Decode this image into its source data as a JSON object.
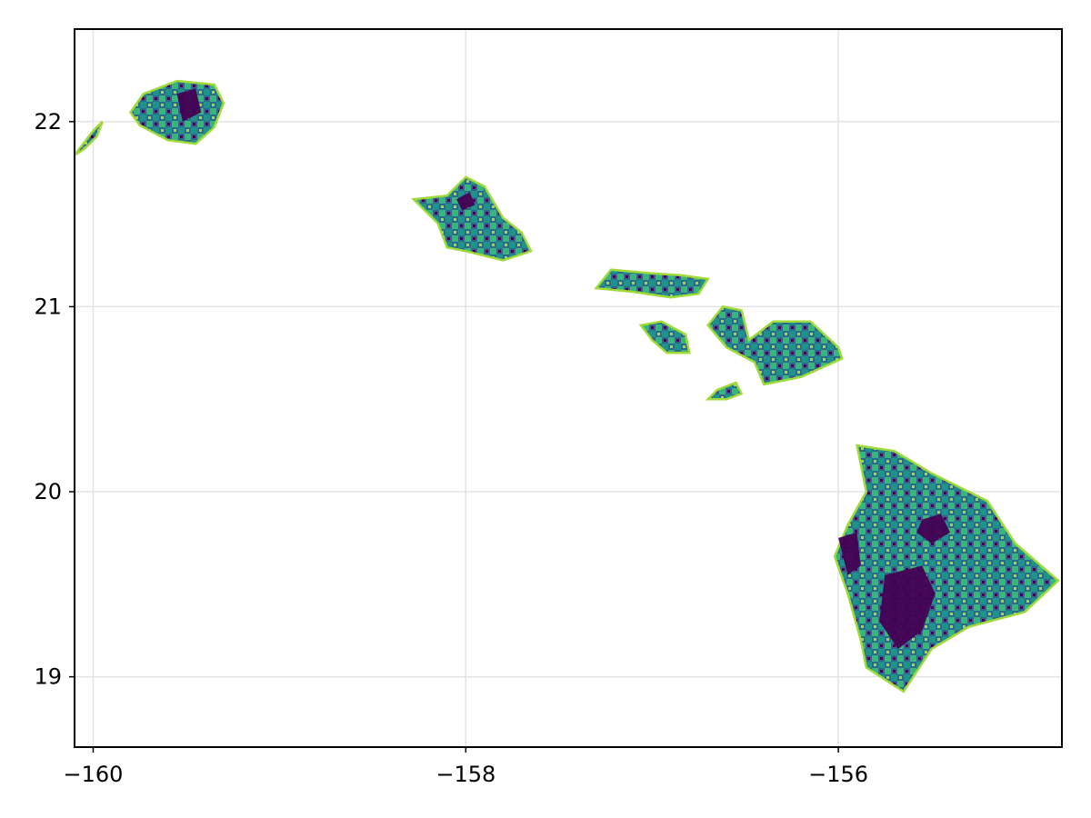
{
  "chart_data": {
    "type": "heatmap",
    "title": "",
    "xlabel": "",
    "ylabel": "",
    "xlim": [
      -160.1,
      -154.8
    ],
    "ylim": [
      18.62,
      22.5
    ],
    "grid": true,
    "colormap": "viridis",
    "x_ticks": [
      {
        "value": -160,
        "label": "−160"
      },
      {
        "value": -158,
        "label": "−158"
      },
      {
        "value": -156,
        "label": "−156"
      }
    ],
    "y_ticks": [
      {
        "value": 19,
        "label": "19"
      },
      {
        "value": 20,
        "label": "20"
      },
      {
        "value": 21,
        "label": "21"
      },
      {
        "value": 22,
        "label": "22"
      }
    ],
    "colors": {
      "dark": "#440154",
      "mid_dark": "#30678d",
      "teal": "#21918c",
      "green": "#35b779",
      "yellow_green": "#a0da39",
      "frame": "#000000",
      "grid": "#e3e3e3"
    },
    "regions": [
      {
        "name": "niihau-fragment",
        "outline": [
          [
            -160.1,
            21.82
          ],
          [
            -160.0,
            21.95
          ],
          [
            -159.95,
            22.0
          ],
          [
            -159.98,
            21.92
          ],
          [
            -160.05,
            21.85
          ]
        ]
      },
      {
        "name": "kauai",
        "outline": [
          [
            -159.8,
            22.05
          ],
          [
            -159.73,
            22.15
          ],
          [
            -159.55,
            22.22
          ],
          [
            -159.35,
            22.2
          ],
          [
            -159.3,
            22.1
          ],
          [
            -159.35,
            21.97
          ],
          [
            -159.45,
            21.88
          ],
          [
            -159.6,
            21.9
          ],
          [
            -159.75,
            21.98
          ]
        ]
      },
      {
        "name": "oahu",
        "outline": [
          [
            -158.28,
            21.58
          ],
          [
            -158.1,
            21.6
          ],
          [
            -158.0,
            21.7
          ],
          [
            -157.9,
            21.65
          ],
          [
            -157.8,
            21.48
          ],
          [
            -157.7,
            21.4
          ],
          [
            -157.65,
            21.3
          ],
          [
            -157.8,
            21.25
          ],
          [
            -158.0,
            21.3
          ],
          [
            -158.1,
            21.32
          ],
          [
            -158.15,
            21.45
          ]
        ]
      },
      {
        "name": "molokai",
        "outline": [
          [
            -157.3,
            21.1
          ],
          [
            -157.22,
            21.2
          ],
          [
            -157.0,
            21.18
          ],
          [
            -156.85,
            21.17
          ],
          [
            -156.7,
            21.15
          ],
          [
            -156.75,
            21.07
          ],
          [
            -156.9,
            21.05
          ],
          [
            -157.1,
            21.08
          ]
        ]
      },
      {
        "name": "lanai",
        "outline": [
          [
            -157.06,
            20.9
          ],
          [
            -156.95,
            20.92
          ],
          [
            -156.82,
            20.85
          ],
          [
            -156.8,
            20.75
          ],
          [
            -156.92,
            20.75
          ],
          [
            -157.0,
            20.82
          ]
        ]
      },
      {
        "name": "maui",
        "outline": [
          [
            -156.7,
            20.9
          ],
          [
            -156.62,
            21.0
          ],
          [
            -156.52,
            20.98
          ],
          [
            -156.48,
            20.82
          ],
          [
            -156.35,
            20.92
          ],
          [
            -156.15,
            20.92
          ],
          [
            -156.0,
            20.78
          ],
          [
            -155.98,
            20.72
          ],
          [
            -156.2,
            20.62
          ],
          [
            -156.4,
            20.58
          ],
          [
            -156.45,
            20.7
          ],
          [
            -156.6,
            20.78
          ]
        ]
      },
      {
        "name": "kahoolawe",
        "outline": [
          [
            -156.7,
            20.5
          ],
          [
            -156.65,
            20.55
          ],
          [
            -156.55,
            20.59
          ],
          [
            -156.52,
            20.53
          ],
          [
            -156.6,
            20.5
          ]
        ]
      },
      {
        "name": "hawaii",
        "outline": [
          [
            -155.9,
            20.25
          ],
          [
            -155.7,
            20.22
          ],
          [
            -155.5,
            20.1
          ],
          [
            -155.2,
            19.95
          ],
          [
            -155.05,
            19.72
          ],
          [
            -154.82,
            19.52
          ],
          [
            -155.0,
            19.35
          ],
          [
            -155.3,
            19.27
          ],
          [
            -155.5,
            19.15
          ],
          [
            -155.65,
            18.92
          ],
          [
            -155.85,
            19.05
          ],
          [
            -155.88,
            19.2
          ],
          [
            -155.95,
            19.45
          ],
          [
            -156.02,
            19.65
          ],
          [
            -155.95,
            19.82
          ],
          [
            -155.85,
            20.0
          ],
          [
            -155.88,
            20.15
          ]
        ]
      }
    ],
    "dark_patches": [
      {
        "name": "mauna-loa-summit",
        "outline": [
          [
            -155.75,
            19.55
          ],
          [
            -155.55,
            19.6
          ],
          [
            -155.48,
            19.45
          ],
          [
            -155.55,
            19.25
          ],
          [
            -155.68,
            19.15
          ],
          [
            -155.78,
            19.3
          ]
        ]
      },
      {
        "name": "mauna-kea-summit",
        "outline": [
          [
            -155.55,
            19.85
          ],
          [
            -155.45,
            19.88
          ],
          [
            -155.4,
            19.78
          ],
          [
            -155.5,
            19.72
          ],
          [
            -155.58,
            19.78
          ]
        ]
      },
      {
        "name": "kona-coast",
        "outline": [
          [
            -156.0,
            19.75
          ],
          [
            -155.9,
            19.78
          ],
          [
            -155.88,
            19.6
          ],
          [
            -155.95,
            19.55
          ]
        ]
      },
      {
        "name": "kauai-interior",
        "outline": [
          [
            -159.55,
            22.15
          ],
          [
            -159.45,
            22.18
          ],
          [
            -159.42,
            22.05
          ],
          [
            -159.52,
            22.0
          ]
        ]
      },
      {
        "name": "oahu-north",
        "outline": [
          [
            -158.05,
            21.58
          ],
          [
            -157.98,
            21.62
          ],
          [
            -157.95,
            21.55
          ],
          [
            -158.02,
            21.52
          ]
        ]
      }
    ]
  }
}
